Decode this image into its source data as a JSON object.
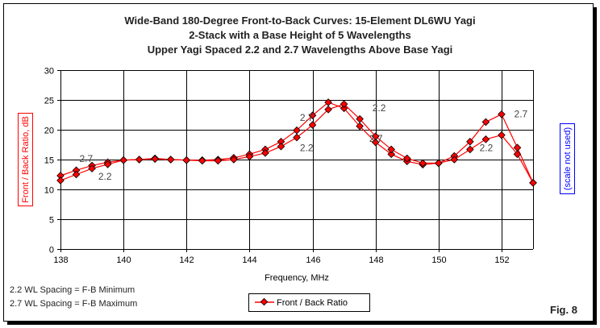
{
  "chart_data": {
    "type": "line",
    "title": [
      "Wide-Band 180-Degree Front-to-Back Curves: 15-Element DL6WU Yagi",
      "2-Stack with a Base Height of 5 Wavelengths",
      "Upper Yagi Spaced 2.2 and 2.7 Wavelengths Above Base Yagi"
    ],
    "xlabel": "Frequency, MHz",
    "ylabel": "Front / Back Ratio,  dB",
    "y2label": "(scale not used)",
    "xlim": [
      138,
      153
    ],
    "ylim": [
      0,
      30
    ],
    "xticks": [
      "138",
      "140",
      "142",
      "144",
      "146",
      "148",
      "150",
      "152"
    ],
    "yticks": [
      "0",
      "5",
      "10",
      "15",
      "20",
      "25",
      "30"
    ],
    "grid": true,
    "legend": {
      "position": "bottom",
      "entries": [
        "Front / Back Ratio"
      ]
    },
    "x": [
      138,
      138.5,
      139,
      139.5,
      140,
      140.5,
      141,
      141.5,
      142,
      142.5,
      143,
      143.5,
      144,
      144.5,
      145,
      145.5,
      146,
      146.5,
      147,
      147.5,
      148,
      148.5,
      149,
      149.5,
      150,
      150.5,
      151,
      151.5,
      152,
      152.5,
      153
    ],
    "series": [
      {
        "label": "2.7",
        "values": [
          12.3,
          13.2,
          14.0,
          14.55,
          14.9,
          15.0,
          15.2,
          15.0,
          14.9,
          14.9,
          15.0,
          15.3,
          15.9,
          16.7,
          18.0,
          19.9,
          22.4,
          24.6,
          23.6,
          20.6,
          17.9,
          15.9,
          14.7,
          14.15,
          14.4,
          15.6,
          18.0,
          21.3,
          22.6,
          17.0,
          11.1
        ]
      },
      {
        "label": "2.2",
        "values": [
          11.5,
          12.5,
          13.5,
          14.2,
          14.9,
          15.0,
          15.1,
          15.0,
          14.9,
          14.8,
          14.8,
          15.0,
          15.5,
          16.1,
          17.2,
          18.7,
          20.8,
          23.4,
          24.3,
          21.8,
          18.9,
          16.7,
          15.2,
          14.4,
          14.4,
          15.0,
          16.7,
          18.4,
          19.1,
          15.9,
          11.1
        ]
      }
    ],
    "color": "#ff0000",
    "annotations": [
      {
        "text": "2.7",
        "x": 138.6,
        "y": 14.6
      },
      {
        "text": "2.2",
        "x": 139.2,
        "y": 11.6
      },
      {
        "text": "2.7",
        "x": 145.6,
        "y": 21.5
      },
      {
        "text": "2.2",
        "x": 145.6,
        "y": 16.4
      },
      {
        "text": "2.2",
        "x": 147.9,
        "y": 23.1
      },
      {
        "text": "2.7",
        "x": 147.8,
        "y": 18.0
      },
      {
        "text": "2.7",
        "x": 152.4,
        "y": 22.1
      },
      {
        "text": "2.2",
        "x": 151.3,
        "y": 16.4
      }
    ]
  },
  "notes": [
    "2.2 WL Spacing = F-B Minimum",
    "2.7 WL Spacing = F-B Maximum"
  ],
  "figure_label": "Fig. 8"
}
